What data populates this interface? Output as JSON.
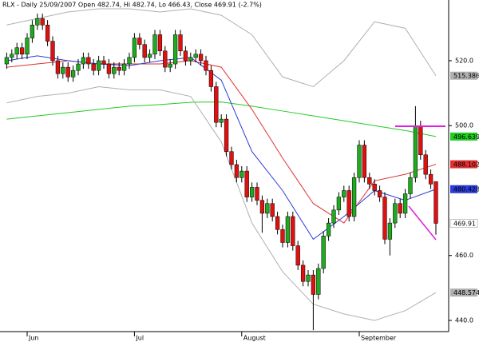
{
  "chart_data": {
    "type": "candlestick",
    "title": "RLX - Daily 25/09/2007 Open 482.74, Hi 482.74, Lo 466.43, Close 469.91 (-2.7%)",
    "categories": [
      null,
      null,
      null,
      null,
      "Jun",
      null,
      null,
      null,
      null,
      null,
      null,
      null,
      null,
      null,
      null,
      null,
      null,
      null,
      null,
      null,
      null,
      null,
      null,
      null,
      null,
      "Jul",
      null,
      null,
      null,
      null,
      null,
      null,
      null,
      null,
      null,
      null,
      null,
      null,
      null,
      null,
      null,
      null,
      null,
      null,
      null,
      null,
      "August",
      null,
      null,
      null,
      null,
      null,
      null,
      null,
      null,
      null,
      null,
      null,
      null,
      null,
      null,
      null,
      null,
      null,
      null,
      null,
      null,
      null,
      null,
      "September",
      null,
      null,
      null,
      null,
      null,
      null,
      null,
      null,
      null,
      null,
      null,
      null,
      null,
      null,
      null
    ],
    "open": [
      519,
      521,
      522,
      524,
      522,
      527,
      531,
      533,
      531,
      526,
      520,
      516,
      518,
      515,
      517,
      519,
      521,
      519,
      517,
      520,
      519,
      516,
      518,
      517,
      519,
      521,
      527,
      525,
      521,
      522,
      528,
      523,
      518,
      519,
      528,
      523,
      520,
      521,
      522,
      520,
      517,
      512,
      501,
      502,
      492,
      488,
      484,
      486,
      478,
      481,
      477,
      473,
      476,
      472,
      468,
      464,
      472,
      463,
      457,
      452,
      454,
      448,
      456,
      466,
      470,
      474,
      478,
      480,
      472,
      484,
      494,
      484,
      482,
      480,
      478,
      465,
      470,
      476,
      473,
      479,
      484,
      500,
      491,
      485,
      482.74
    ],
    "high": [
      522.5,
      523.5,
      525.5,
      525.5,
      528.5,
      532.5,
      534.5,
      534.5,
      532.5,
      527.5,
      521.5,
      519.5,
      519.5,
      518.5,
      520.5,
      522.5,
      522.5,
      520.5,
      521.5,
      521.5,
      520.5,
      519.5,
      519.5,
      520.5,
      522.5,
      528.5,
      528.5,
      526.5,
      523.5,
      529.5,
      529.5,
      524.5,
      520.5,
      529.5,
      529.5,
      524.5,
      522.5,
      523.5,
      523.5,
      521.5,
      518.5,
      513.5,
      503.5,
      503.5,
      493.5,
      489.5,
      487.5,
      487.5,
      482.5,
      482.5,
      478.5,
      477.5,
      477.5,
      473.5,
      469.5,
      473.5,
      473.5,
      464.5,
      458.5,
      455.5,
      455.5,
      457.5,
      467.5,
      471.5,
      475.5,
      479.5,
      481.5,
      481.5,
      485.5,
      495.5,
      495.5,
      485.5,
      483.5,
      481.5,
      479.5,
      471.5,
      477.5,
      477.5,
      480.5,
      485.5,
      506,
      501.5,
      492.5,
      486.5,
      482.74
    ],
    "low": [
      517.5,
      519.5,
      520.5,
      520.5,
      520.5,
      525.5,
      529.5,
      529.5,
      524.5,
      518.5,
      514.5,
      514.5,
      513.5,
      513.5,
      515.5,
      517.5,
      517.5,
      515.5,
      515.5,
      517.5,
      514.5,
      514.5,
      515.5,
      515.5,
      517.5,
      519.5,
      523.5,
      519.5,
      519.5,
      520.5,
      521.5,
      516.5,
      516.5,
      517.5,
      521.5,
      518.5,
      518.5,
      519.5,
      518.5,
      515.5,
      510.5,
      499.5,
      499.5,
      490.5,
      486.5,
      482.5,
      482.5,
      476.5,
      476.5,
      475.5,
      467,
      471.5,
      470.5,
      466.5,
      462.5,
      462.5,
      461.5,
      455.5,
      450.5,
      450.5,
      437,
      446.5,
      454.5,
      464.5,
      468.5,
      472.5,
      476.5,
      470.5,
      470.5,
      482.5,
      482.5,
      480.5,
      478.5,
      476.5,
      463.5,
      460,
      468.5,
      471.5,
      471.5,
      477.5,
      482.5,
      489.5,
      483.5,
      480.5,
      466.43
    ],
    "close": [
      521,
      522,
      524,
      522,
      527,
      531,
      533,
      531,
      526,
      520,
      516,
      518,
      515,
      517,
      519,
      521,
      519,
      517,
      520,
      519,
      516,
      518,
      517,
      519,
      521,
      527,
      525,
      521,
      522,
      528,
      523,
      518,
      519,
      528,
      523,
      520,
      521,
      522,
      520,
      517,
      512,
      501,
      502,
      492,
      488,
      484,
      486,
      478,
      481,
      477,
      473,
      476,
      472,
      468,
      464,
      472,
      463,
      457,
      452,
      454,
      448,
      456,
      466,
      470,
      474,
      478,
      480,
      472,
      484,
      494,
      484,
      482,
      480,
      478,
      465,
      470,
      476,
      473,
      479,
      484,
      500,
      491,
      485,
      482,
      469.91
    ],
    "up_color": "#1faa1f",
    "down_color": "#e01010",
    "overlays": [
      {
        "color": "#b0b0b0",
        "x": [
          0,
          6,
          12,
          18,
          24,
          30,
          36,
          42,
          48,
          54,
          60,
          66,
          72,
          78,
          84
        ],
        "values": [
          531,
          533,
          535,
          536,
          536,
          535,
          536,
          534,
          528,
          515,
          512,
          520,
          532,
          530,
          515.386
        ]
      },
      {
        "color": "#22cc22",
        "x": [
          0,
          6,
          12,
          18,
          24,
          30,
          36,
          42,
          48,
          54,
          60,
          66,
          72,
          78,
          84
        ],
        "values": [
          502,
          503,
          504,
          505,
          506,
          506.5,
          507.2,
          507.3,
          506,
          504.5,
          503,
          501.5,
          500,
          498.5,
          496.639
        ]
      },
      {
        "color": "#e03030",
        "x": [
          0,
          6,
          12,
          18,
          24,
          30,
          36,
          42,
          48,
          54,
          60,
          66,
          72,
          78,
          84
        ],
        "values": [
          518,
          519,
          520,
          519,
          519,
          519,
          520,
          518,
          505,
          490,
          476,
          470,
          483,
          485,
          488.102
        ]
      },
      {
        "color": "#2b3bd8",
        "x": [
          0,
          6,
          12,
          18,
          24,
          30,
          36,
          42,
          48,
          54,
          60,
          66,
          72,
          78,
          84
        ],
        "values": [
          520,
          521.5,
          520,
          519,
          518.5,
          520,
          521,
          514,
          492,
          480,
          465,
          472,
          480,
          477,
          480.428
        ]
      },
      {
        "color": "#b0b0b0",
        "x": [
          0,
          6,
          12,
          18,
          24,
          30,
          36,
          42,
          48,
          54,
          60,
          66,
          72,
          78,
          84
        ],
        "values": [
          507,
          509,
          510,
          512,
          511,
          511,
          509,
          495,
          470,
          455,
          445,
          442,
          440,
          443,
          448.574
        ]
      }
    ],
    "ylim": [
      436.55,
      538.7
    ],
    "yticks": [
      {
        "value": 440,
        "label": "440.0"
      },
      {
        "value": 460,
        "label": "460.0"
      },
      {
        "value": 500,
        "label": "500.0"
      },
      {
        "value": 520,
        "label": "520.0"
      }
    ]
  }
}
